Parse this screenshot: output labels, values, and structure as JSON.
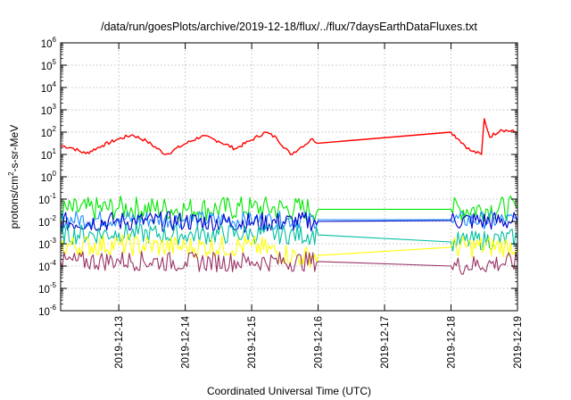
{
  "chart_data": {
    "type": "line",
    "title": "/data/run/goesPlots/archive/2019-12-18/flux/../flux/7daysEarthDataFluxes.txt",
    "xlabel": "Coordinated Universal Time (UTC)",
    "ylabel": {
      "prefix": "protons/cm",
      "sup": "2",
      "suffix": "-s-sr-MeV"
    },
    "x_ticks": [
      "2019-12-13",
      "2019-12-14",
      "2019-12-15",
      "2019-12-16",
      "2019-12-17",
      "2019-12-18",
      "2019-12-19"
    ],
    "y_ticks": [
      {
        "base": "10",
        "exp": "-6"
      },
      {
        "base": "10",
        "exp": "-5"
      },
      {
        "base": "10",
        "exp": "-4"
      },
      {
        "base": "10",
        "exp": "-3"
      },
      {
        "base": "10",
        "exp": "-2"
      },
      {
        "base": "10",
        "exp": "-1"
      },
      {
        "base": "10",
        "exp": "0"
      },
      {
        "base": "10",
        "exp": "1"
      },
      {
        "base": "10",
        "exp": "2"
      },
      {
        "base": "10",
        "exp": "3"
      },
      {
        "base": "10",
        "exp": "4"
      },
      {
        "base": "10",
        "exp": "5"
      },
      {
        "base": "10",
        "exp": "6"
      }
    ],
    "xlim": [
      "2019-12-12T03:00",
      "2019-12-19T00:00"
    ],
    "ylim": [
      1e-06,
      1000000.0
    ],
    "y_scale": "log",
    "grid": true,
    "series": [
      {
        "color": "#ff0000",
        "points": [
          [
            "2019-12-12T03:00",
            25
          ],
          [
            "2019-12-12T07:00",
            20
          ],
          [
            "2019-12-12T12:00",
            11
          ],
          [
            "2019-12-12T18:00",
            25
          ],
          [
            "2019-12-13T00:00",
            50
          ],
          [
            "2019-12-13T05:00",
            75
          ],
          [
            "2019-12-13T10:00",
            40
          ],
          [
            "2019-12-13T17:00",
            10
          ],
          [
            "2019-12-14T00:00",
            30
          ],
          [
            "2019-12-14T06:00",
            68
          ],
          [
            "2019-12-14T12:00",
            40
          ],
          [
            "2019-12-14T18:00",
            18
          ],
          [
            "2019-12-15T00:00",
            45
          ],
          [
            "2019-12-15T05:00",
            100
          ],
          [
            "2019-12-15T09:00",
            55
          ],
          [
            "2019-12-15T14:00",
            10
          ],
          [
            "2019-12-15T18:00",
            22
          ],
          [
            "2019-12-15T22:00",
            50
          ],
          [
            "2019-12-16T00:00",
            32
          ],
          [
            "2019-12-18T00:00",
            100
          ],
          [
            "2019-12-18T03:00",
            45
          ],
          [
            "2019-12-18T07:00",
            15
          ],
          [
            "2019-12-18T11:00",
            10
          ],
          [
            "2019-12-18T12:00",
            400
          ],
          [
            "2019-12-18T14:00",
            60
          ],
          [
            "2019-12-18T18:00",
            130
          ],
          [
            "2019-12-19T00:00",
            100
          ]
        ]
      },
      {
        "color": "#00e800",
        "points": [
          [
            "2019-12-12T03:00",
            0.03
          ],
          [
            "2019-12-13T00:00",
            0.04
          ],
          [
            "2019-12-14T00:00",
            0.035
          ],
          [
            "2019-12-15T00:00",
            0.04
          ],
          [
            "2019-12-16T00:00",
            0.035
          ],
          [
            "2019-12-18T00:00",
            0.035
          ],
          [
            "2019-12-19T00:00",
            0.04
          ]
        ]
      },
      {
        "color": "#1e90ff",
        "points": [
          [
            "2019-12-12T03:00",
            0.012
          ],
          [
            "2019-12-13T00:00",
            0.013
          ],
          [
            "2019-12-14T00:00",
            0.012
          ],
          [
            "2019-12-15T00:00",
            0.011
          ],
          [
            "2019-12-16T00:00",
            0.012
          ],
          [
            "2019-12-18T00:00",
            0.012
          ],
          [
            "2019-12-19T00:00",
            0.011
          ]
        ]
      },
      {
        "color": "#0000c8",
        "points": [
          [
            "2019-12-12T03:00",
            0.009
          ],
          [
            "2019-12-13T00:00",
            0.01
          ],
          [
            "2019-12-14T00:00",
            0.01
          ],
          [
            "2019-12-15T00:00",
            0.009
          ],
          [
            "2019-12-16T00:00",
            0.01
          ],
          [
            "2019-12-18T00:00",
            0.011
          ],
          [
            "2019-12-19T00:00",
            0.01
          ]
        ]
      },
      {
        "color": "#00bfa0",
        "points": [
          [
            "2019-12-12T03:00",
            0.0025
          ],
          [
            "2019-12-13T00:00",
            0.003
          ],
          [
            "2019-12-14T00:00",
            0.0025
          ],
          [
            "2019-12-15T00:00",
            0.0028
          ],
          [
            "2019-12-16T00:00",
            0.0025
          ],
          [
            "2019-12-18T00:00",
            0.0012
          ],
          [
            "2019-12-19T00:00",
            0.0018
          ]
        ]
      },
      {
        "color": "#ffff00",
        "points": [
          [
            "2019-12-12T03:00",
            0.0008
          ],
          [
            "2019-12-13T00:00",
            0.0009
          ],
          [
            "2019-12-14T00:00",
            0.0007
          ],
          [
            "2019-12-15T00:00",
            0.0008
          ],
          [
            "2019-12-15T18:00",
            0.00025
          ],
          [
            "2019-12-16T00:00",
            0.0003
          ],
          [
            "2019-12-18T00:00",
            0.0007
          ],
          [
            "2019-12-19T00:00",
            0.0008
          ]
        ]
      },
      {
        "color": "#993366",
        "points": [
          [
            "2019-12-12T03:00",
            0.00015
          ],
          [
            "2019-12-13T00:00",
            0.00018
          ],
          [
            "2019-12-14T00:00",
            0.00015
          ],
          [
            "2019-12-15T00:00",
            0.00016
          ],
          [
            "2019-12-16T00:00",
            0.00016
          ],
          [
            "2019-12-18T00:00",
            0.0001
          ],
          [
            "2019-12-19T00:00",
            0.00015
          ]
        ]
      }
    ]
  }
}
